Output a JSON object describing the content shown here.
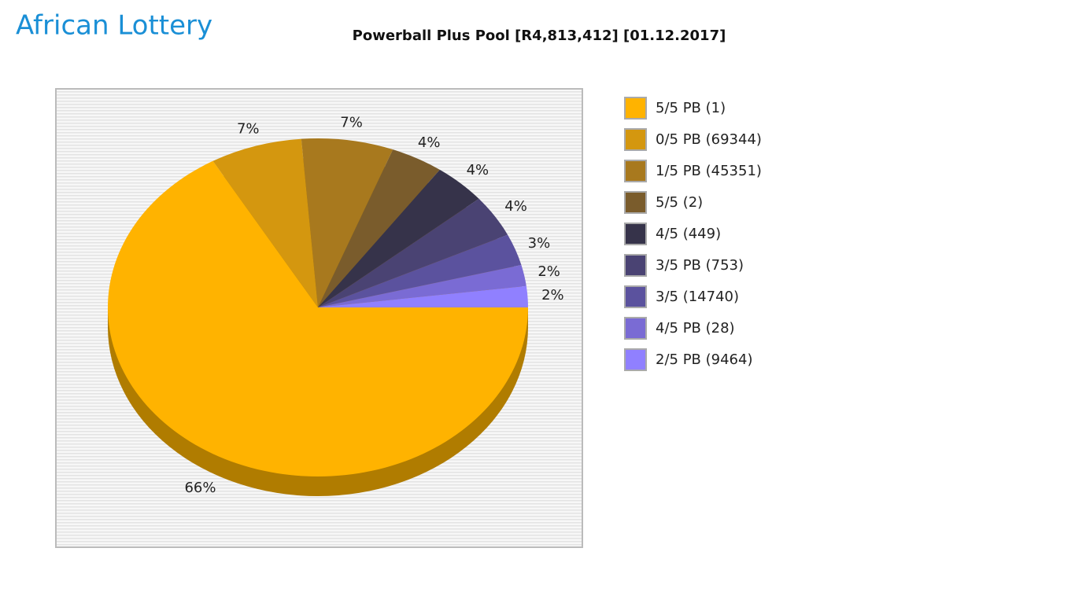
{
  "logo": "African Lottery",
  "chart_data": {
    "type": "pie",
    "title": "Powerball Plus Pool [R4,813,412] [01.12.2017]",
    "categories": [
      "5/5 PB (1)",
      "0/5 PB (69344)",
      "1/5 PB (45351)",
      "5/5 (2)",
      "4/5 (449)",
      "3/5 PB (753)",
      "3/5 (14740)",
      "4/5 PB (28)",
      "2/5 PB (9464)"
    ],
    "values": [
      66,
      7,
      7,
      4,
      4,
      4,
      3,
      2,
      2
    ],
    "value_labels": [
      "66%",
      "7%",
      "7%",
      "4%",
      "4%",
      "4%",
      "3%",
      "2%",
      "2%"
    ],
    "colors": [
      "#ffb300",
      "#d4970f",
      "#a8791e",
      "#7a5c2c",
      "#36334a",
      "#4a4373",
      "#5b529e",
      "#7a6bd4",
      "#9080ff"
    ],
    "legend": "right"
  }
}
